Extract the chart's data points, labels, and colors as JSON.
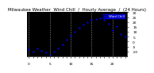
{
  "title": "Milwaukee Weather  Wind Chill  /  Hourly Average  /  (24 Hours)",
  "hours": [
    0,
    1,
    2,
    3,
    4,
    5,
    6,
    7,
    8,
    9,
    10,
    11,
    12,
    13,
    14,
    15,
    16,
    17,
    18,
    19,
    20,
    21,
    22,
    23
  ],
  "wind_chill": [
    -8,
    -10,
    -7,
    -9,
    -11,
    -13,
    -10,
    -7,
    -3,
    2,
    6,
    10,
    14,
    17,
    20,
    22,
    23,
    24,
    22,
    18,
    12,
    16,
    8,
    5
  ],
  "dot_color": "#0000ff",
  "bg_color": "#ffffff",
  "plot_bg": "#000000",
  "grid_color": "#888888",
  "legend_color": "#0000ff",
  "ylim": [
    -15,
    30
  ],
  "xlim": [
    -0.5,
    23.5
  ],
  "yticks": [
    -10,
    -5,
    0,
    5,
    10,
    15,
    20,
    25,
    30
  ],
  "ytick_labels": [
    "-10",
    "-5",
    "0",
    "5",
    "10",
    "15",
    "20",
    "25",
    "30"
  ],
  "grid_positions": [
    0,
    5,
    10,
    15,
    20
  ],
  "title_fontsize": 4.0,
  "tick_fontsize": 3.2,
  "dot_size": 2.5,
  "legend_label": "Wind Chill"
}
